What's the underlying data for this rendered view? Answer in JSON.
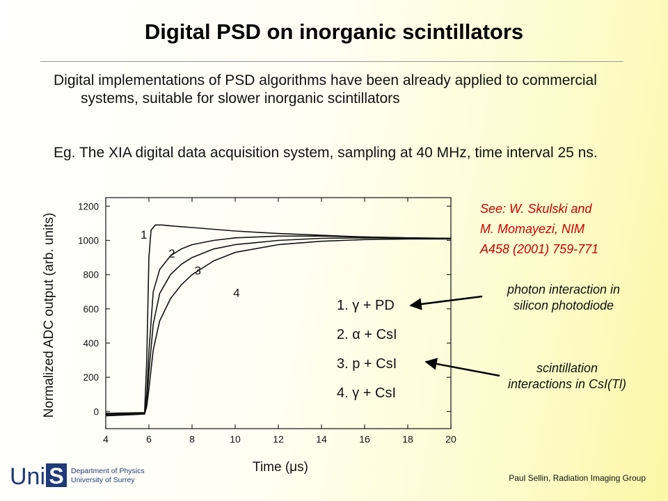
{
  "title": "Digital PSD on inorganic scintillators",
  "bullets": [
    "Digital implementations of PSD algorithms have been already applied to commercial systems, suitable for slower inorganic scintillators",
    "Eg. The XIA digital data acquisition system, sampling at 40 MHz, time interval 25 ns."
  ],
  "reference": {
    "line1": "See: W. Skulski and",
    "line2": "M. Momayezi, NIM",
    "line3": "A458 (2001) 759-771"
  },
  "annotations": {
    "photon_line1": "photon interaction in",
    "photon_line2": "silicon photodiode",
    "scint_line1": "scintillation",
    "scint_line2": "interactions in CsI(Tl)"
  },
  "logo": {
    "wordmark_left": "Uni",
    "wordmark_right": "S",
    "line1": "Department of Physics",
    "line2": "University of Surrey"
  },
  "footer": "Paul Sellin, Radiation Imaging Group",
  "colors": {
    "reference": "#cc0000",
    "curve": "#111111"
  },
  "chart_data": {
    "type": "line",
    "xlabel": "Time  (μs)",
    "ylabel": "Normalized ADC output (arb. units)",
    "xlim": [
      4,
      20
    ],
    "ylim": [
      -100,
      1250
    ],
    "xticks": [
      4,
      6,
      8,
      10,
      12,
      14,
      16,
      18,
      20
    ],
    "yticks": [
      0,
      200,
      400,
      600,
      800,
      1000,
      1200
    ],
    "grid": false,
    "legend_position": "center-right",
    "series": [
      {
        "curve_label": "1",
        "legend": "1.   γ + PD",
        "x": [
          4.0,
          5.0,
          5.8,
          5.9,
          6.0,
          6.1,
          6.3,
          6.6,
          7,
          8,
          9,
          10,
          12,
          14,
          16,
          18,
          20
        ],
        "y": [
          -10,
          -8,
          -6,
          300,
          900,
          1060,
          1090,
          1090,
          1085,
          1075,
          1065,
          1055,
          1040,
          1030,
          1020,
          1015,
          1012
        ]
      },
      {
        "curve_label": "2",
        "legend": "2.  α + CsI",
        "x": [
          4.0,
          5.0,
          5.8,
          5.9,
          6.0,
          6.2,
          6.5,
          7,
          7.5,
          8,
          9,
          10,
          12,
          14,
          16,
          18,
          20
        ],
        "y": [
          -15,
          -12,
          -10,
          100,
          350,
          700,
          830,
          910,
          950,
          975,
          1000,
          1015,
          1025,
          1025,
          1020,
          1015,
          1012
        ]
      },
      {
        "curve_label": "3",
        "legend": "3.  p + CsI",
        "x": [
          4.0,
          5.0,
          5.8,
          5.9,
          6.0,
          6.2,
          6.5,
          7,
          7.5,
          8,
          9,
          10,
          12,
          14,
          16,
          18,
          20
        ],
        "y": [
          -20,
          -15,
          -12,
          60,
          230,
          510,
          690,
          800,
          860,
          900,
          950,
          975,
          1000,
          1012,
          1015,
          1012,
          1010
        ]
      },
      {
        "curve_label": "4",
        "legend": "4.  γ + CsI",
        "x": [
          4.0,
          5.0,
          5.8,
          5.9,
          6.0,
          6.2,
          6.5,
          7,
          7.5,
          8,
          9,
          10,
          12,
          14,
          16,
          18,
          20
        ],
        "y": [
          -25,
          -20,
          -15,
          30,
          130,
          360,
          530,
          660,
          740,
          800,
          880,
          930,
          975,
          995,
          1005,
          1008,
          1008
        ]
      }
    ]
  }
}
